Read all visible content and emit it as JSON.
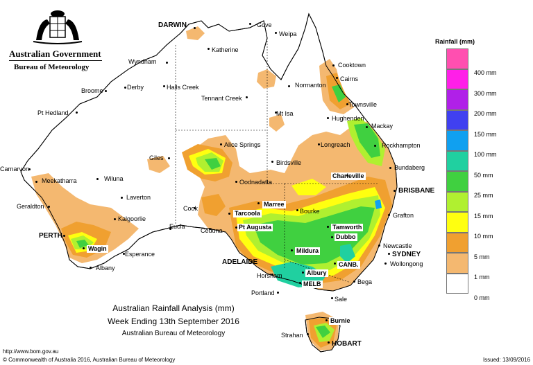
{
  "header": {
    "government": "Australian Government",
    "bureau": "Bureau of Meteorology"
  },
  "legend": {
    "title": "Rainfall (mm)",
    "items": [
      {
        "label": "400 mm",
        "color": "#ff4fb0"
      },
      {
        "label": "300 mm",
        "color": "#ff1fe8"
      },
      {
        "label": "200 mm",
        "color": "#b020e8"
      },
      {
        "label": "150 mm",
        "color": "#4040f0"
      },
      {
        "label": "100 mm",
        "color": "#10a0f0"
      },
      {
        "label": "50 mm",
        "color": "#20d0a0"
      },
      {
        "label": "25 mm",
        "color": "#40d040"
      },
      {
        "label": "15 mm",
        "color": "#b0f030"
      },
      {
        "label": "10 mm",
        "color": "#ffff10"
      },
      {
        "label": "5 mm",
        "color": "#f0a030"
      },
      {
        "label": "1 mm",
        "color": "#f4b870"
      },
      {
        "label": "0 mm",
        "color": "#ffffff"
      }
    ]
  },
  "places": [
    {
      "name": "DARWIN",
      "style": "big"
    },
    {
      "name": "Gove"
    },
    {
      "name": "Weipa"
    },
    {
      "name": "Katherine"
    },
    {
      "name": "Wyndham"
    },
    {
      "name": "Cooktown"
    },
    {
      "name": "Cairns"
    },
    {
      "name": "Broome"
    },
    {
      "name": "Derby"
    },
    {
      "name": "Halls Creek"
    },
    {
      "name": "Normanton"
    },
    {
      "name": "Tennant Creek"
    },
    {
      "name": "Townsville"
    },
    {
      "name": "Pt Hedland"
    },
    {
      "name": "Mt Isa"
    },
    {
      "name": "Hughenden"
    },
    {
      "name": "Mackay"
    },
    {
      "name": "Alice Springs"
    },
    {
      "name": "Rockhampton"
    },
    {
      "name": "Longreach"
    },
    {
      "name": "Giles"
    },
    {
      "name": "Birdsville"
    },
    {
      "name": "Bundaberg"
    },
    {
      "name": "Carnarvon"
    },
    {
      "name": "Charleville",
      "style": "boxed"
    },
    {
      "name": "Meekatharra"
    },
    {
      "name": "Wiluna"
    },
    {
      "name": "Oodnadatta"
    },
    {
      "name": "BRISBANE",
      "style": "big"
    },
    {
      "name": "Laverton"
    },
    {
      "name": "Geraldton"
    },
    {
      "name": "Marree",
      "style": "boxed"
    },
    {
      "name": "Bourke"
    },
    {
      "name": "Cook"
    },
    {
      "name": "Tarcoola",
      "style": "boxed"
    },
    {
      "name": "Grafton"
    },
    {
      "name": "Kalgoorlie"
    },
    {
      "name": "Eucla"
    },
    {
      "name": "Ceduna"
    },
    {
      "name": "Pt Augusta",
      "style": "boxed"
    },
    {
      "name": "Tamworth",
      "style": "boxed"
    },
    {
      "name": "PERTH",
      "style": "big"
    },
    {
      "name": "Dubbo",
      "style": "boxed"
    },
    {
      "name": "Newcastle"
    },
    {
      "name": "SYDNEY",
      "style": "big"
    },
    {
      "name": "Mildura",
      "style": "boxed"
    },
    {
      "name": "Wagin",
      "style": "boxed"
    },
    {
      "name": "Esperance"
    },
    {
      "name": "Wollongong"
    },
    {
      "name": "ADELAIDE",
      "style": "big"
    },
    {
      "name": "CANB.",
      "style": "boxed"
    },
    {
      "name": "Albany"
    },
    {
      "name": "Albury",
      "style": "boxed"
    },
    {
      "name": "Horsham"
    },
    {
      "name": "Bega"
    },
    {
      "name": "MELB",
      "style": "boxed"
    },
    {
      "name": "Portland"
    },
    {
      "name": "Sale"
    },
    {
      "name": "Burnie",
      "style": "boxed"
    },
    {
      "name": "Strahan"
    },
    {
      "name": "HOBART",
      "style": "big"
    }
  ],
  "titles": {
    "line1": "Australian Rainfall Analysis (mm)",
    "line2": "Week Ending 13th September 2016",
    "line3": "Australian Bureau of Meteorology"
  },
  "footer": {
    "url": "http://www.bom.gov.au",
    "copyright": "© Commonwealth of Australia 2016, Australian Bureau of Meteorology",
    "issued": "Issued: 13/09/2016"
  }
}
